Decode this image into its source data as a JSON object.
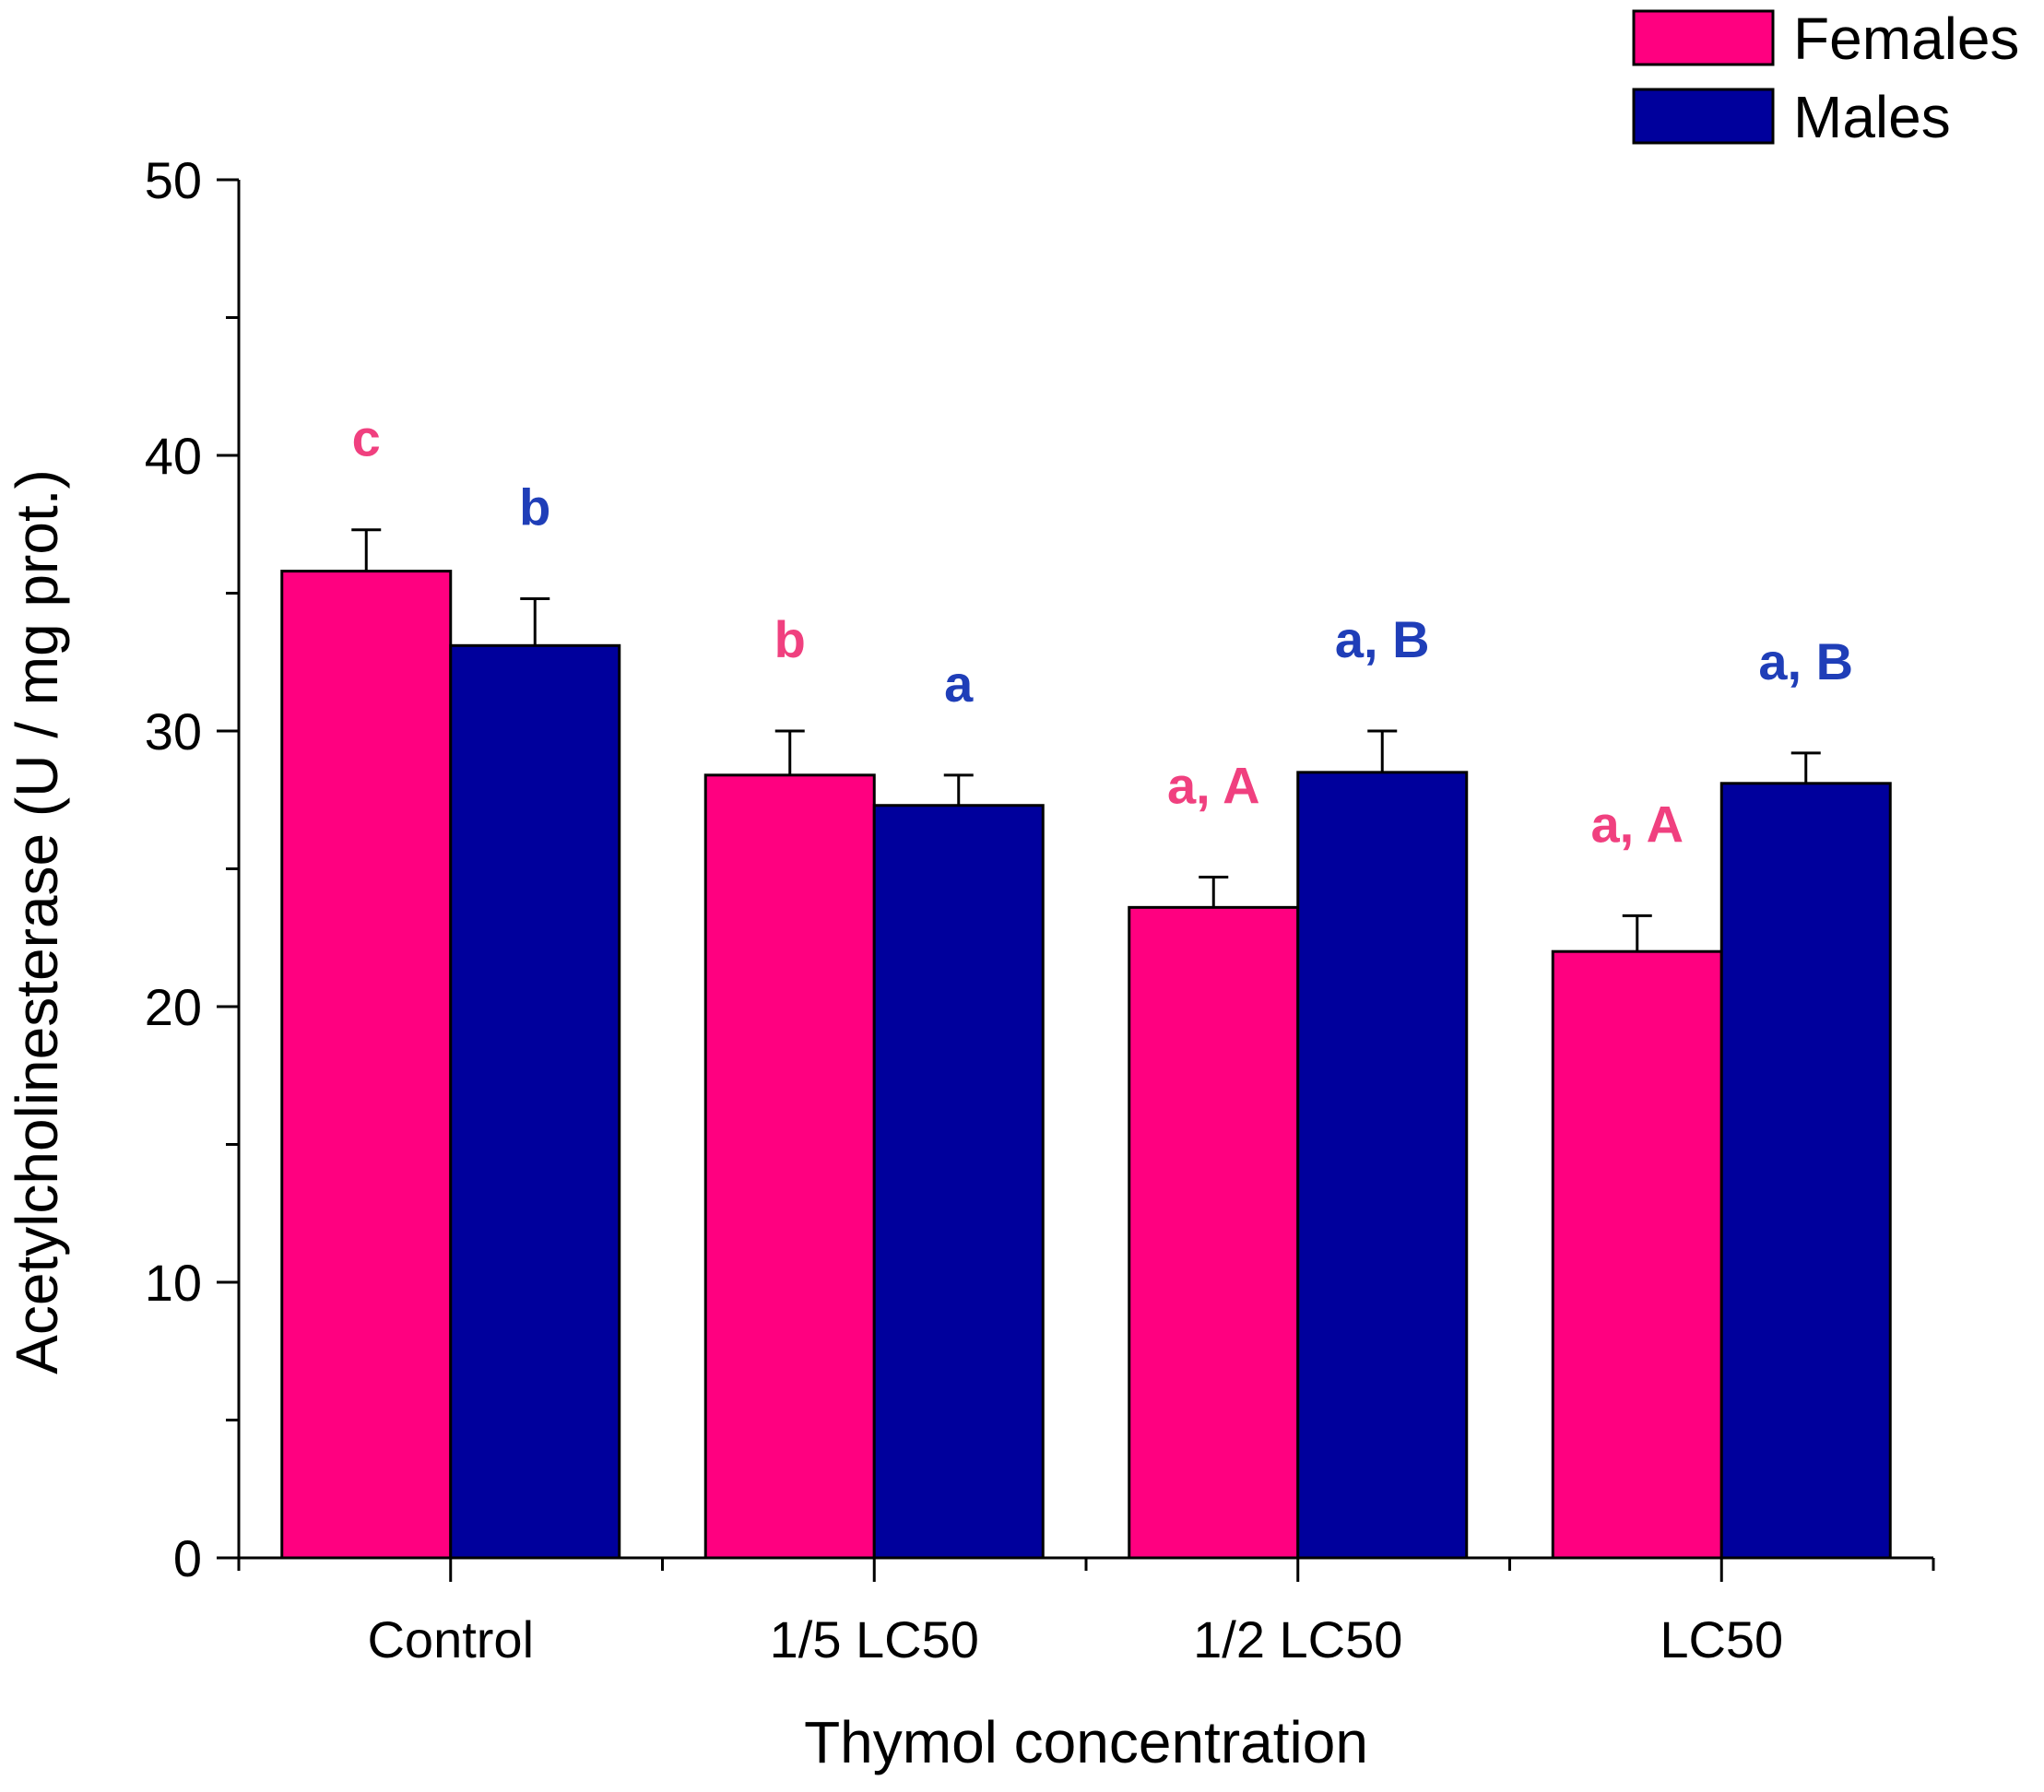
{
  "chart_data": {
    "type": "bar",
    "title": "",
    "xlabel": "Thymol concentration",
    "ylabel": "Acetylcholinesterase (U / mg prot.)",
    "ylim": [
      0,
      50
    ],
    "yticks": [
      0,
      10,
      20,
      30,
      40,
      50
    ],
    "y_minor_step": 5,
    "categories": [
      "Control",
      "1/5 LC50",
      "1/2 LC50",
      "LC50"
    ],
    "legend_position": "top-right",
    "series": [
      {
        "name": "Females",
        "color": "#ff0080",
        "label_color": "#f0407f",
        "values": [
          35.8,
          28.4,
          23.6,
          22.0
        ],
        "errors": [
          1.5,
          1.6,
          1.1,
          1.3
        ],
        "annotations": [
          "c",
          "b",
          "a, A",
          "a, A"
        ]
      },
      {
        "name": "Males",
        "color": "#00009c",
        "label_color": "#1f3eb8",
        "values": [
          33.1,
          27.3,
          28.5,
          28.1
        ],
        "errors": [
          1.7,
          1.1,
          1.5,
          1.1
        ],
        "annotations": [
          "b",
          "a",
          "a, B",
          "a, B"
        ]
      }
    ]
  }
}
